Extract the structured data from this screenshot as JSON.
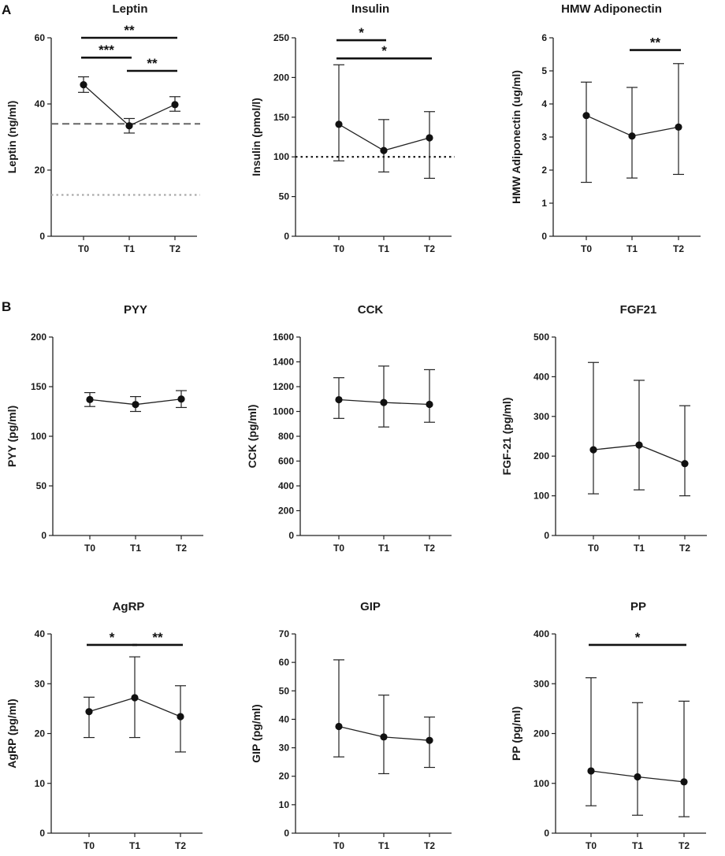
{
  "panel_labels": [
    "A",
    "B"
  ],
  "chart_data": [
    {
      "type": "line",
      "title": "Leptin",
      "ylabel": "Leptin (ng/ml)",
      "ylim": [
        0,
        60
      ],
      "yticks": [
        0,
        20,
        40,
        60
      ],
      "categories": [
        "T0",
        "T1",
        "T2"
      ],
      "values": [
        45.8,
        33.4,
        39.8
      ],
      "err_low": [
        43.5,
        31.2,
        37.8
      ],
      "err_high": [
        48.2,
        35.6,
        42.2
      ],
      "ref_lines": [
        {
          "value": 34,
          "style": "dashed",
          "color": "#666666"
        },
        {
          "value": 12.5,
          "style": "dotted",
          "color": "#aaaaaa"
        }
      ],
      "sig_bars": [
        {
          "from": 0,
          "to": 2,
          "level": 60,
          "label": "**"
        },
        {
          "from": 0,
          "to": 1,
          "level": 54,
          "label": "***"
        },
        {
          "from": 1,
          "to": 2,
          "level": 50,
          "label": "**"
        }
      ]
    },
    {
      "type": "line",
      "title": "Insulin",
      "ylabel": "Insulin (pmol/l)",
      "ylim": [
        0,
        250
      ],
      "yticks": [
        0,
        50,
        100,
        150,
        200,
        250
      ],
      "categories": [
        "T0",
        "T1",
        "T2"
      ],
      "values": [
        141,
        108,
        124
      ],
      "err_low": [
        95,
        81,
        73
      ],
      "err_high": [
        216,
        147,
        157
      ],
      "ref_lines": [
        {
          "value": 100,
          "style": "dotted",
          "color": "#111111"
        }
      ],
      "sig_bars": [
        {
          "from": 0,
          "to": 1,
          "level": 247,
          "label": "*"
        },
        {
          "from": 0,
          "to": 2,
          "level": 224,
          "label": "*"
        }
      ]
    },
    {
      "type": "line",
      "title": "HMW Adiponectin",
      "ylabel": "HMW Adiponectin (ug/ml)",
      "ylim": [
        0,
        6
      ],
      "yticks": [
        0,
        1,
        2,
        3,
        4,
        5,
        6
      ],
      "categories": [
        "T0",
        "T1",
        "T2"
      ],
      "values": [
        3.65,
        3.03,
        3.3
      ],
      "err_low": [
        1.63,
        1.76,
        1.87
      ],
      "err_high": [
        4.66,
        4.5,
        5.22
      ],
      "ref_lines": [],
      "sig_bars": [
        {
          "from": 1,
          "to": 2,
          "level": 5.63,
          "label": "**"
        }
      ]
    },
    {
      "type": "line",
      "title": "PYY",
      "ylabel": "PYY (pg/ml)",
      "ylim": [
        0,
        200
      ],
      "yticks": [
        0,
        50,
        100,
        150,
        200
      ],
      "categories": [
        "T0",
        "T1",
        "T2"
      ],
      "values": [
        137,
        132,
        137.5
      ],
      "err_low": [
        130,
        125,
        129
      ],
      "err_high": [
        144,
        140,
        146
      ],
      "ref_lines": [],
      "sig_bars": []
    },
    {
      "type": "line",
      "title": "CCK",
      "ylabel": "CCK (pg/ml)",
      "ylim": [
        0,
        1600
      ],
      "yticks": [
        0,
        200,
        400,
        600,
        800,
        1000,
        1200,
        1400,
        1600
      ],
      "categories": [
        "T0",
        "T1",
        "T2"
      ],
      "values": [
        1095,
        1072,
        1057
      ],
      "err_low": [
        944,
        875,
        913
      ],
      "err_high": [
        1272,
        1366,
        1337
      ],
      "ref_lines": [],
      "sig_bars": []
    },
    {
      "type": "line",
      "title": "FGF21",
      "ylabel": "FGF-21 (pg/ml)",
      "ylim": [
        0,
        500
      ],
      "yticks": [
        0,
        100,
        200,
        300,
        400,
        500
      ],
      "categories": [
        "T0",
        "T1",
        "T2"
      ],
      "values": [
        216,
        228,
        181
      ],
      "err_low": [
        105,
        115,
        100
      ],
      "err_high": [
        436,
        391,
        327
      ],
      "ref_lines": [],
      "sig_bars": []
    },
    {
      "type": "line",
      "title": "AgRP",
      "ylabel": "AgRP (pg/ml)",
      "ylim": [
        0,
        40
      ],
      "yticks": [
        0,
        10,
        20,
        30,
        40
      ],
      "categories": [
        "T0",
        "T1",
        "T2"
      ],
      "values": [
        24.4,
        27.2,
        23.4
      ],
      "err_low": [
        19.2,
        19.2,
        16.3
      ],
      "err_high": [
        27.3,
        35.4,
        29.6
      ],
      "ref_lines": [],
      "sig_bars": [
        {
          "from": 0,
          "to": 1,
          "level": 37.8,
          "label": "*"
        },
        {
          "from": 1,
          "to": 2,
          "level": 37.8,
          "label": "**"
        }
      ]
    },
    {
      "type": "line",
      "title": "GIP",
      "ylabel": "GIP (pg/ml)",
      "ylim": [
        0,
        70
      ],
      "yticks": [
        0,
        10,
        20,
        30,
        40,
        50,
        60,
        70
      ],
      "categories": [
        "T0",
        "T1",
        "T2"
      ],
      "values": [
        37.5,
        33.8,
        32.6
      ],
      "err_low": [
        26.8,
        20.9,
        23.1
      ],
      "err_high": [
        60.9,
        48.5,
        40.8
      ],
      "ref_lines": [],
      "sig_bars": []
    },
    {
      "type": "line",
      "title": "PP",
      "ylabel": "PP (pg/ml)",
      "ylim": [
        0,
        400
      ],
      "yticks": [
        0,
        100,
        200,
        300,
        400
      ],
      "categories": [
        "T0",
        "T1",
        "T2"
      ],
      "values": [
        125,
        113,
        103
      ],
      "err_low": [
        55,
        36,
        33
      ],
      "err_high": [
        312,
        262,
        265
      ],
      "ref_lines": [],
      "sig_bars": [
        {
          "from": 0,
          "to": 2,
          "level": 378,
          "label": "*"
        }
      ]
    }
  ]
}
